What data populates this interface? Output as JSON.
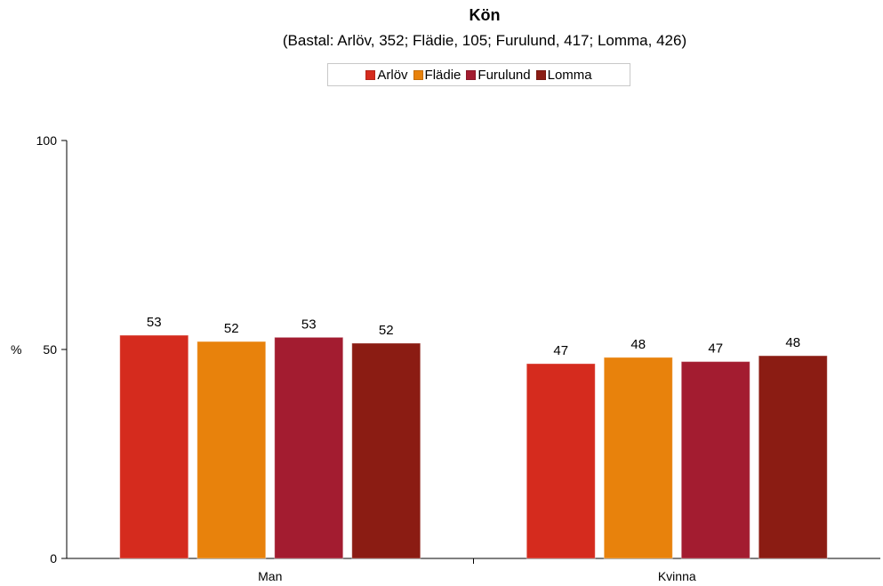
{
  "chart_data": {
    "type": "bar",
    "title": "Kön",
    "subtitle": "(Bastal: Arlöv, 352; Flädie, 105; Furulund, 417; Lomma, 426)",
    "ylabel": "%",
    "xlabel": "",
    "ylim": [
      0,
      100
    ],
    "yticks": [
      "0",
      "50",
      "100"
    ],
    "categories": [
      "Man",
      "Kvinna"
    ],
    "legend_position": "top",
    "grid": false,
    "series": [
      {
        "name": "Arlöv",
        "color": "#d52b1e",
        "values": [
          53.4,
          46.6
        ],
        "labels": [
          "53",
          "47"
        ]
      },
      {
        "name": "Flädie",
        "color": "#e8820c",
        "values": [
          51.9,
          48.1
        ],
        "labels": [
          "52",
          "48"
        ]
      },
      {
        "name": "Furulund",
        "color": "#a31c30",
        "values": [
          52.9,
          47.1
        ],
        "labels": [
          "53",
          "47"
        ]
      },
      {
        "name": "Lomma",
        "color": "#8b1c13",
        "values": [
          51.5,
          48.5
        ],
        "labels": [
          "52",
          "48"
        ]
      }
    ]
  }
}
